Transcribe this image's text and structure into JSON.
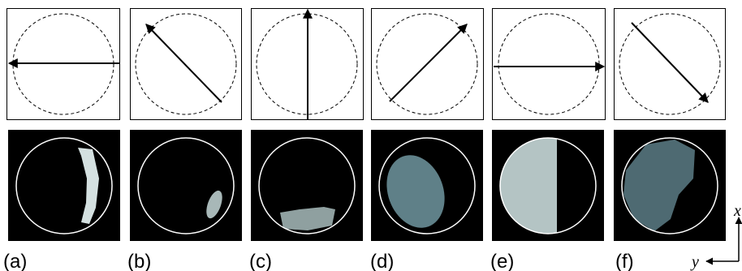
{
  "panels": [
    {
      "label": "(a)"
    },
    {
      "label": "(b)"
    },
    {
      "label": "(c)"
    },
    {
      "label": "(d)"
    },
    {
      "label": "(e)"
    },
    {
      "label": "(f)"
    }
  ],
  "axes": {
    "x": "x",
    "y": "y"
  }
}
